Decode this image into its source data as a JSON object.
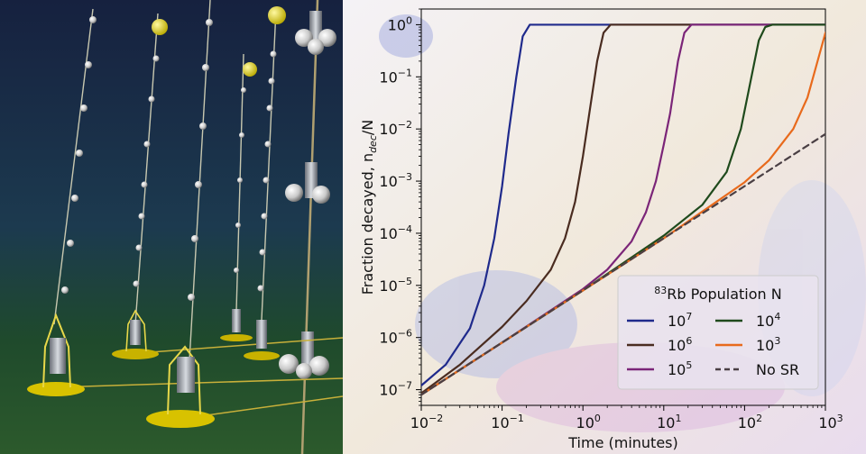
{
  "chart_data": {
    "type": "line",
    "xlabel": "Time (minutes)",
    "ylabel_main": "Fraction decayed, n",
    "ylabel_sub": "dec",
    "ylabel_tail": "/N",
    "x_scale": "log",
    "y_scale": "log",
    "xlim": [
      0.01,
      1000
    ],
    "ylim": [
      5e-08,
      2
    ],
    "x_ticks": [
      {
        "value": 0.01,
        "base": "10",
        "exp": "−2"
      },
      {
        "value": 0.1,
        "base": "10",
        "exp": "−1"
      },
      {
        "value": 1,
        "base": "10",
        "exp": "0"
      },
      {
        "value": 10,
        "base": "10",
        "exp": "1"
      },
      {
        "value": 100,
        "base": "10",
        "exp": "2"
      },
      {
        "value": 1000,
        "base": "10",
        "exp": "3"
      }
    ],
    "y_ticks": [
      {
        "value": 1e-07,
        "base": "10",
        "exp": "−7"
      },
      {
        "value": 1e-06,
        "base": "10",
        "exp": "−6"
      },
      {
        "value": 1e-05,
        "base": "10",
        "exp": "−5"
      },
      {
        "value": 0.0001,
        "base": "10",
        "exp": "−4"
      },
      {
        "value": 0.001,
        "base": "10",
        "exp": "−3"
      },
      {
        "value": 0.01,
        "base": "10",
        "exp": "−2"
      },
      {
        "value": 0.1,
        "base": "10",
        "exp": "−1"
      },
      {
        "value": 1,
        "base": "10",
        "exp": "0"
      }
    ],
    "legend": {
      "title_sup": "83",
      "title_text": "Rb Population N",
      "placement": "lower-right"
    },
    "series": [
      {
        "label_base": "10",
        "label_exp": "7",
        "color": "#1f2a8c",
        "style": "solid",
        "points": [
          [
            0.01,
            1.2e-07
          ],
          [
            0.02,
            3e-07
          ],
          [
            0.04,
            1.5e-06
          ],
          [
            0.06,
            1e-05
          ],
          [
            0.08,
            8e-05
          ],
          [
            0.1,
            0.0008
          ],
          [
            0.12,
            0.008
          ],
          [
            0.15,
            0.1
          ],
          [
            0.18,
            0.6
          ],
          [
            0.22,
            1
          ],
          [
            1000,
            1
          ]
        ]
      },
      {
        "label_base": "10",
        "label_exp": "6",
        "color": "#4a2c20",
        "style": "solid",
        "points": [
          [
            0.01,
            8.5e-08
          ],
          [
            0.03,
            3e-07
          ],
          [
            0.1,
            1.6e-06
          ],
          [
            0.2,
            5e-06
          ],
          [
            0.4,
            2e-05
          ],
          [
            0.6,
            8e-05
          ],
          [
            0.8,
            0.0004
          ],
          [
            1,
            0.003
          ],
          [
            1.2,
            0.02
          ],
          [
            1.5,
            0.2
          ],
          [
            1.8,
            0.7
          ],
          [
            2.2,
            1
          ],
          [
            1000,
            1
          ]
        ]
      },
      {
        "label_base": "10",
        "label_exp": "5",
        "color": "#7b2578",
        "style": "solid",
        "points": [
          [
            0.01,
            8e-08
          ],
          [
            0.1,
            8e-07
          ],
          [
            1,
            8.5e-06
          ],
          [
            2,
            2e-05
          ],
          [
            4,
            7e-05
          ],
          [
            6,
            0.00025
          ],
          [
            8,
            0.001
          ],
          [
            10,
            0.005
          ],
          [
            12,
            0.02
          ],
          [
            15,
            0.2
          ],
          [
            18,
            0.7
          ],
          [
            22,
            1
          ],
          [
            1000,
            1
          ]
        ]
      },
      {
        "label_base": "10",
        "label_exp": "4",
        "color": "#1f4a1c",
        "style": "solid",
        "points": [
          [
            0.01,
            8e-08
          ],
          [
            1,
            8e-06
          ],
          [
            10,
            9e-05
          ],
          [
            30,
            0.00035
          ],
          [
            60,
            0.0015
          ],
          [
            90,
            0.01
          ],
          [
            120,
            0.09
          ],
          [
            150,
            0.5
          ],
          [
            180,
            0.9
          ],
          [
            220,
            1
          ],
          [
            1000,
            1
          ]
        ]
      },
      {
        "label_base": "10",
        "label_exp": "3",
        "color": "#e86a1c",
        "style": "solid",
        "points": [
          [
            0.01,
            8e-08
          ],
          [
            10,
            8e-05
          ],
          [
            100,
            0.00095
          ],
          [
            200,
            0.0025
          ],
          [
            400,
            0.01
          ],
          [
            600,
            0.04
          ],
          [
            800,
            0.2
          ],
          [
            1000,
            0.7
          ]
        ]
      },
      {
        "label": "No SR",
        "color": "#4a3f44",
        "style": "dashed",
        "points": [
          [
            0.01,
            8e-08
          ],
          [
            1000,
            0.008
          ]
        ]
      }
    ]
  }
}
